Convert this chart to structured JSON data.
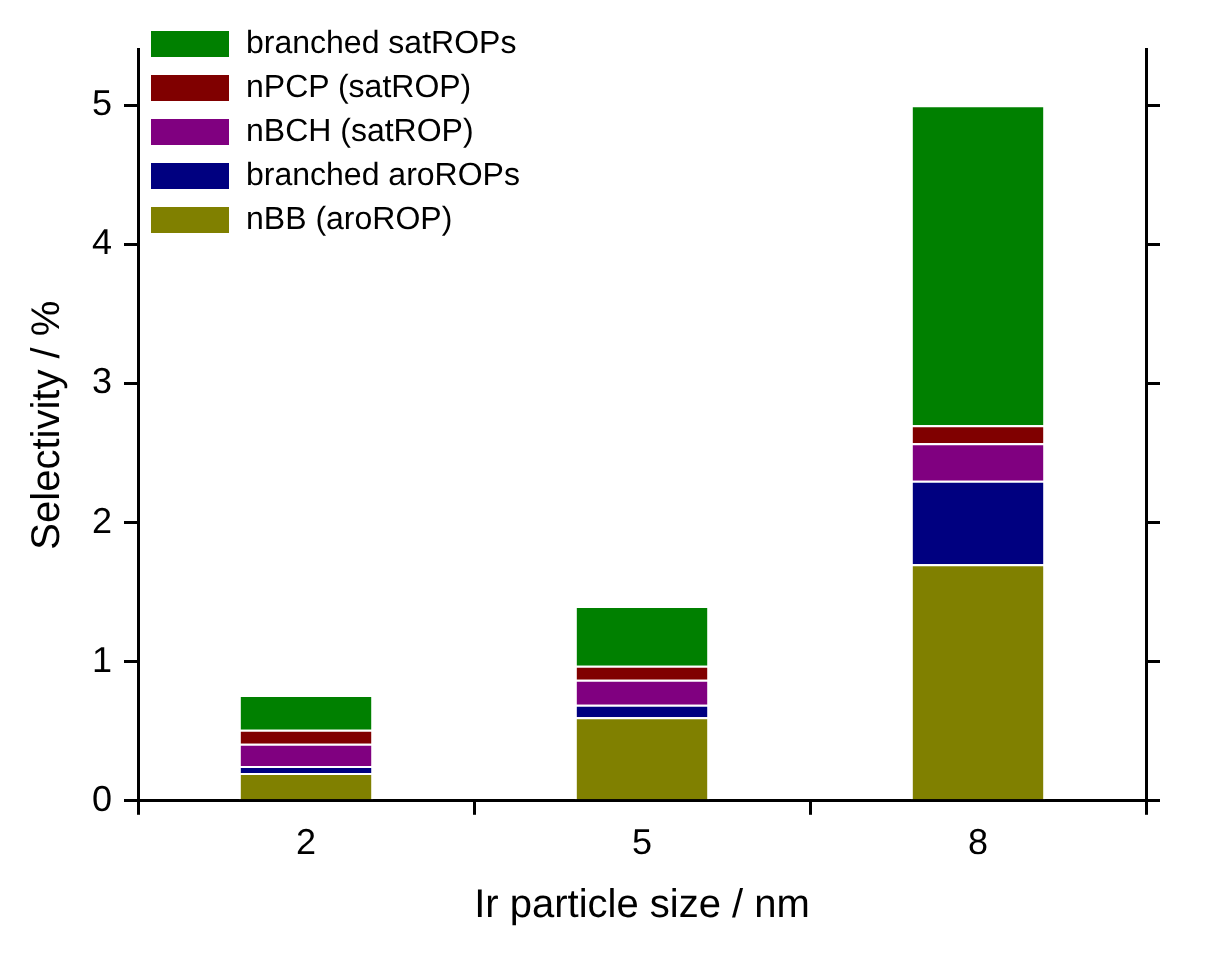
{
  "chart_data": {
    "type": "bar",
    "stacked": true,
    "xlabel": "Ir particle size / nm",
    "ylabel": "Selectivity / %",
    "categories": [
      "2",
      "5",
      "8"
    ],
    "series": [
      {
        "name": "nBB (aroROP)",
        "color": "#808000",
        "values": [
          0.2,
          0.6,
          1.7
        ]
      },
      {
        "name": "branched aroROPs",
        "color": "#000080",
        "values": [
          0.05,
          0.09,
          0.6
        ]
      },
      {
        "name": "nBCH (satROP)",
        "color": "#800080",
        "values": [
          0.16,
          0.18,
          0.27
        ]
      },
      {
        "name": "nPCP (satROP)",
        "color": "#800000",
        "values": [
          0.1,
          0.1,
          0.13
        ]
      },
      {
        "name": "branched satROPs",
        "color": "#008000",
        "values": [
          0.25,
          0.43,
          2.3
        ]
      }
    ],
    "ylim": [
      0,
      5.4
    ],
    "yticks": [
      0,
      1,
      2,
      3,
      4,
      5
    ],
    "grid": false,
    "legend": "top left"
  }
}
